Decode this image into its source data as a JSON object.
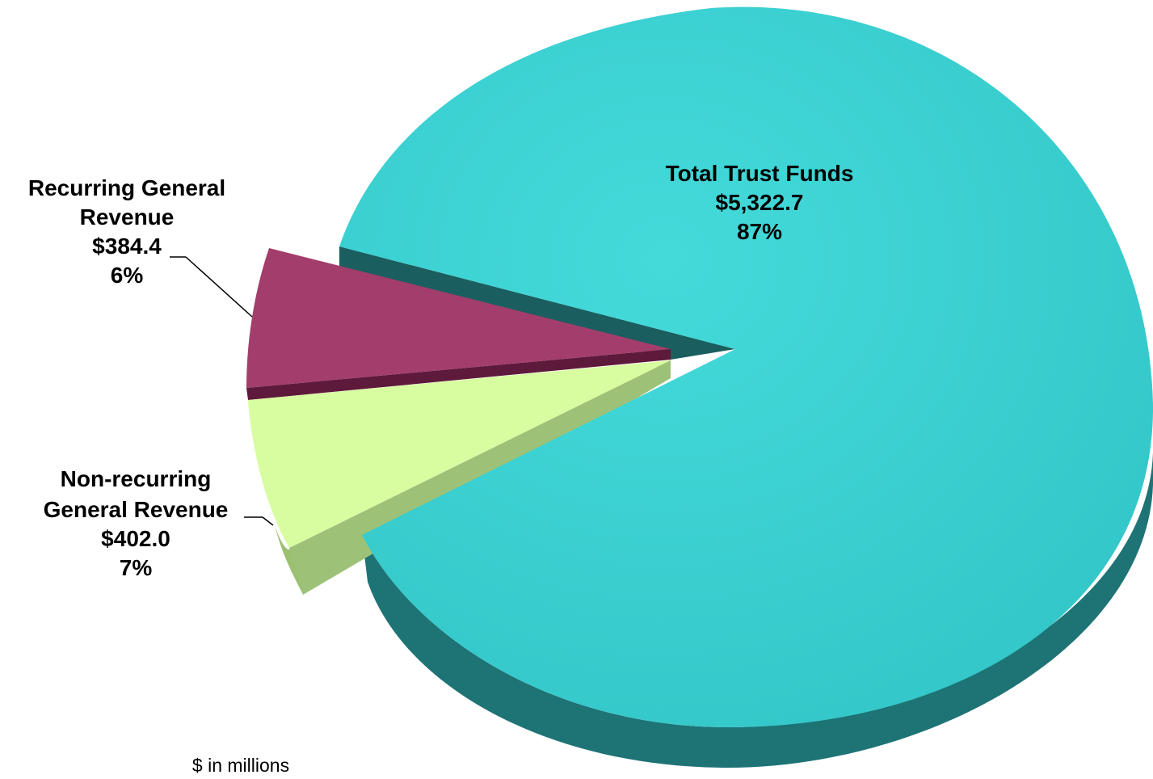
{
  "chart_data": {
    "type": "pie",
    "title": "",
    "units_note": "$ in millions",
    "slices": [
      {
        "name_lines": [
          "Total Trust Funds"
        ],
        "value": 5322.7,
        "value_label": "$5,322.7",
        "percent_label": "87%",
        "color": "#3BD2D2",
        "side_color": "#1B6F70"
      },
      {
        "name_lines": [
          "Recurring General",
          "Revenue"
        ],
        "value": 384.4,
        "value_label": "$384.4",
        "percent_label": "6%",
        "color": "#A33D6B",
        "side_color": "#5E1A3A"
      },
      {
        "name_lines": [
          "Non-recurring",
          "General Revenue"
        ],
        "value": 402.0,
        "value_label": "$402.0",
        "percent_label": "7%",
        "color": "#D8FCA0",
        "side_color": "#9BC070"
      }
    ]
  }
}
